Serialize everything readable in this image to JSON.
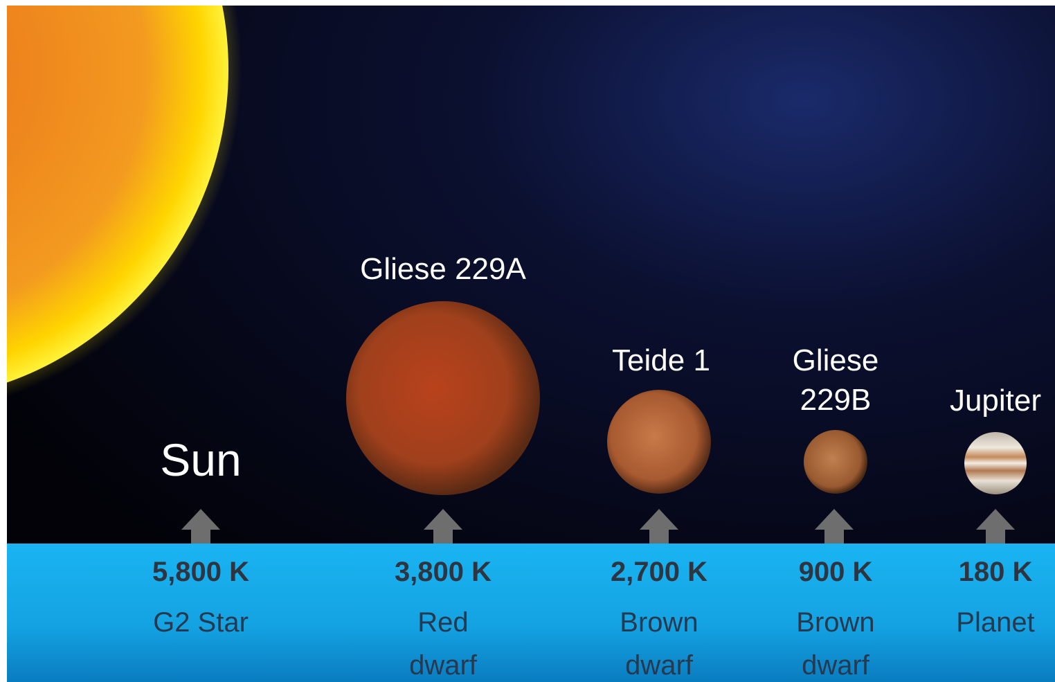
{
  "objects": [
    {
      "name": "Sun",
      "temperature": "5,800 K",
      "class": "G2 Star"
    },
    {
      "name": "Gliese 229A",
      "temperature": "3,800 K",
      "class": "Red dwarf"
    },
    {
      "name": "Teide 1",
      "temperature": "2,700 K",
      "class": "Brown dwarf"
    },
    {
      "name": "Gliese 229B",
      "temperature": "900 K",
      "class": "Brown dwarf"
    },
    {
      "name": "Jupiter",
      "temperature": "180 K",
      "class": "Planet"
    }
  ]
}
